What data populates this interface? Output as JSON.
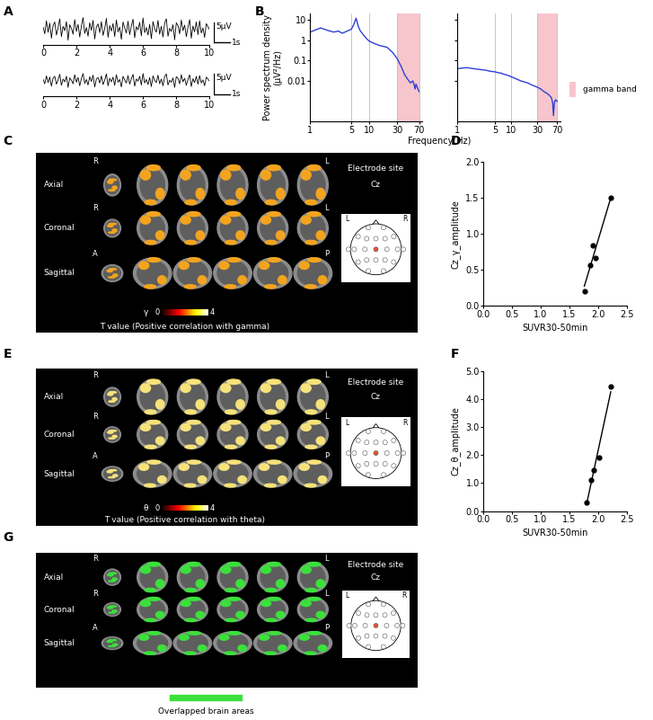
{
  "chart_data": [
    {
      "type": "line",
      "panel": "A",
      "x": [
        0,
        0.1,
        0.2,
        0.3,
        0.4,
        0.5,
        0.6,
        0.7,
        0.8,
        0.9,
        1,
        1.1,
        1.2,
        1.3,
        1.4,
        1.5,
        1.6,
        1.7,
        1.8,
        1.9,
        2,
        2.1,
        2.2,
        2.3,
        2.4,
        2.5,
        2.6,
        2.7,
        2.8,
        2.9,
        3,
        3.1,
        3.2,
        3.3,
        3.4,
        3.5,
        3.6,
        3.7,
        3.8,
        3.9,
        4,
        4.1,
        4.2,
        4.3,
        4.4,
        4.5,
        4.6,
        4.7,
        4.8,
        4.9,
        5,
        5.1,
        5.2,
        5.3,
        5.4,
        5.5,
        5.6,
        5.7,
        5.8,
        5.9,
        6,
        6.1,
        6.2,
        6.3,
        6.4,
        6.5,
        6.6,
        6.7,
        6.8,
        6.9,
        7,
        7.1,
        7.2,
        7.3,
        7.4,
        7.5,
        7.6,
        7.7,
        7.8,
        7.9,
        8,
        8.1,
        8.2,
        8.3,
        8.4,
        8.5,
        8.6,
        8.7,
        8.8,
        8.9,
        9,
        9.1,
        9.2,
        9.3,
        9.4,
        9.5,
        9.6,
        9.7,
        9.8,
        9.9,
        10
      ],
      "values": [
        0.5,
        -1.2,
        2.1,
        -0.8,
        1.5,
        -2.3,
        0.9,
        1.8,
        -1.5,
        0.3,
        2.6,
        -1.9,
        0.7,
        -0.4,
        1.9,
        -2.8,
        1.1,
        0.2,
        -1.3,
        2.4,
        -0.6,
        1.2,
        -2.0,
        0.8,
        2.9,
        -1.1,
        0.4,
        -1.8,
        1.6,
        -0.3,
        2.2,
        -2.5,
        0.6,
        1.3,
        -0.9,
        1.9,
        -1.6,
        0.1,
        2.7,
        -2.1,
        0.9,
        -0.5,
        1.4,
        -1.9,
        2.3,
        -0.7,
        0.5,
        -2.6,
        1.8,
        0.3,
        -1.0,
        2.0,
        -1.4,
        0.8,
        2.5,
        -2.2,
        0.6,
        -0.2,
        1.7,
        -1.7,
        2.8,
        -0.9,
        0.4,
        -1.5,
        1.2,
        -2.4,
        1.9,
        0.1,
        -0.8,
        2.2,
        -1.3,
        0.7,
        -2.0,
        1.5,
        2.6,
        -1.8,
        0.2,
        -0.6,
        1.1,
        -2.7,
        1.6,
        0.9,
        -1.2,
        2.3,
        -0.4,
        1.0,
        -1.9,
        0.5,
        2.4,
        -2.3,
        0.8,
        -0.7,
        1.8,
        -1.4,
        2.1,
        -1.0,
        0.3,
        -2.1,
        1.4,
        0.6,
        -0.2
      ],
      "xlim": [
        0,
        10
      ],
      "xticks": [
        0,
        2,
        4,
        6,
        8,
        10
      ],
      "ylim": [
        -4,
        4
      ],
      "tick_labels": "x",
      "color": "#000000",
      "scale_bar": {
        "x": 1,
        "y": 5,
        "x_label": "1s",
        "y_label": "5µV"
      }
    },
    {
      "type": "line",
      "x": [
        0,
        0.1,
        0.2,
        0.3,
        0.4,
        0.5,
        0.6,
        0.7,
        0.8,
        0.9,
        1,
        1.1,
        1.2,
        1.3,
        1.4,
        1.5,
        1.6,
        1.7,
        1.8,
        1.9,
        2,
        2.1,
        2.2,
        2.3,
        2.4,
        2.5,
        2.6,
        2.7,
        2.8,
        2.9,
        3,
        3.1,
        3.2,
        3.3,
        3.4,
        3.5,
        3.6,
        3.7,
        3.8,
        3.9,
        4,
        4.1,
        4.2,
        4.3,
        4.4,
        4.5,
        4.6,
        4.7,
        4.8,
        4.9,
        5,
        5.1,
        5.2,
        5.3,
        5.4,
        5.5,
        5.6,
        5.7,
        5.8,
        5.9,
        6,
        6.1,
        6.2,
        6.3,
        6.4,
        6.5,
        6.6,
        6.7,
        6.8,
        6.9,
        7,
        7.1,
        7.2,
        7.3,
        7.4,
        7.5,
        7.6,
        7.7,
        7.8,
        7.9,
        8,
        8.1,
        8.2,
        8.3,
        8.4,
        8.5,
        8.6,
        8.7,
        8.8,
        8.9,
        9,
        9.1,
        9.2,
        9.3,
        9.4,
        9.5,
        9.6,
        9.7,
        9.8,
        9.9,
        10
      ],
      "values": [
        0.3,
        -0.8,
        1.2,
        -0.5,
        0.9,
        -1.4,
        0.6,
        1.1,
        -0.9,
        0.2,
        1.6,
        -1.2,
        0.4,
        -0.3,
        1.1,
        -1.7,
        0.7,
        0.1,
        -0.8,
        1.5,
        -0.4,
        0.8,
        -1.3,
        0.5,
        1.8,
        -0.7,
        0.3,
        -1.1,
        1.0,
        -0.2,
        1.4,
        -1.6,
        0.4,
        0.8,
        -0.6,
        1.2,
        -1.0,
        0.1,
        1.7,
        -1.3,
        0.6,
        -0.3,
        0.9,
        -1.2,
        1.5,
        -0.4,
        0.3,
        -1.6,
        1.1,
        0.2,
        -0.6,
        1.3,
        -0.9,
        0.5,
        1.6,
        -1.4,
        0.4,
        -0.1,
        1.1,
        -1.1,
        1.8,
        -0.6,
        0.3,
        -1.0,
        0.8,
        -1.5,
        1.2,
        0.1,
        -0.5,
        1.4,
        -0.8,
        0.4,
        -1.3,
        1.0,
        1.7,
        -1.1,
        0.1,
        -0.4,
        0.7,
        -1.7,
        1.0,
        0.6,
        -0.8,
        1.5,
        -0.3,
        0.6,
        -1.2,
        0.3,
        1.5,
        -1.5,
        0.5,
        -0.5,
        1.1,
        -0.9,
        1.3,
        -0.6,
        0.2,
        -1.3,
        0.9,
        0.4,
        -0.2
      ],
      "xlim": [
        0,
        10
      ],
      "xticks": [
        0,
        2,
        4,
        6,
        8,
        10
      ],
      "ylim": [
        -4,
        4
      ],
      "tick_labels": "x",
      "color": "#000000",
      "scale_bar": {
        "x": 1,
        "y": 5,
        "x_label": "1s",
        "y_label": "5µV"
      }
    },
    {
      "type": "line",
      "panel": "B",
      "x": [
        1,
        1.5,
        2,
        2.5,
        3,
        3.5,
        4,
        5,
        5.5,
        6,
        6.5,
        7,
        8,
        9,
        10,
        12,
        15,
        20,
        25,
        30,
        35,
        40,
        45,
        50,
        55,
        58,
        60,
        62,
        65,
        70
      ],
      "values": [
        2.5,
        4,
        3,
        2.5,
        2.8,
        2.2,
        2.6,
        3.5,
        6,
        12,
        5,
        3,
        1.8,
        1.2,
        0.9,
        0.7,
        0.55,
        0.45,
        0.25,
        0.12,
        0.05,
        0.02,
        0.012,
        0.008,
        0.01,
        0.006,
        0.004,
        0.007,
        0.005,
        0.003
      ],
      "log": true,
      "xlim": [
        1,
        80
      ],
      "xticks": [
        1,
        5,
        10,
        30,
        70
      ],
      "ylim": [
        0.0001,
        20
      ],
      "yticks": [
        0.01,
        0.1,
        1,
        10
      ],
      "grid": true,
      "color": "#2f3fd6",
      "ylabel": "Power spectrum density\n(µV²/Hz)",
      "xlabel": "Frequency(Hz)",
      "band": {
        "range": [
          30,
          70
        ],
        "color": "#f7c6cc"
      }
    },
    {
      "type": "line",
      "x": [
        1,
        1.5,
        2,
        2.5,
        3,
        3.5,
        4,
        5,
        5.5,
        6,
        6.5,
        7,
        8,
        9,
        10,
        12,
        15,
        20,
        25,
        30,
        35,
        40,
        45,
        50,
        55,
        58,
        60,
        62,
        65,
        70
      ],
      "values": [
        0.04,
        0.045,
        0.04,
        0.037,
        0.035,
        0.033,
        0.03,
        0.028,
        0.026,
        0.025,
        0.024,
        0.022,
        0.02,
        0.018,
        0.016,
        0.013,
        0.01,
        0.008,
        0.006,
        0.005,
        0.004,
        0.003,
        0.0025,
        0.002,
        0.0015,
        0.0008,
        0.0002,
        0.0008,
        0.0012,
        0.001
      ],
      "log": true,
      "xlim": [
        1,
        80
      ],
      "xticks": [
        1,
        5,
        10,
        30,
        70
      ],
      "ylim": [
        0.0001,
        20
      ],
      "yticks": [
        0.01,
        0.1,
        1,
        10
      ],
      "grid": true,
      "tick_labels": "x",
      "color": "#2f3fd6",
      "band": {
        "range": [
          30,
          70
        ],
        "color": "#f7c6cc",
        "label": "gamma band"
      }
    },
    {
      "type": "image",
      "panel": "C",
      "views": [
        {
          "name": "Axial",
          "labels": [
            "R",
            "L"
          ]
        },
        {
          "name": "Coronal",
          "labels": [
            "R",
            "L"
          ]
        },
        {
          "name": "Sagittal",
          "labels": [
            "A",
            "P"
          ]
        }
      ],
      "electrode_title": "Electrode site",
      "electrode": "Cz",
      "head_labels": [
        "L",
        "R"
      ],
      "color": "#f3a41e",
      "colorbar": {
        "symbol": "γ",
        "range": [
          0,
          4
        ],
        "ticks": [
          0,
          4
        ],
        "label": "T value (Positive correlation with gamma)"
      }
    },
    {
      "type": "scatter",
      "panel": "D",
      "x": [
        1.76,
        1.86,
        1.9,
        1.96,
        2.22
      ],
      "values": [
        0.2,
        0.57,
        0.84,
        0.67,
        1.5
      ],
      "xlim": [
        0,
        2.5
      ],
      "xticks": [
        {
          "value": 0,
          "label": "0.0"
        },
        0.5,
        {
          "value": 1,
          "label": "1.0"
        },
        1.5,
        {
          "value": 2,
          "label": "2.0"
        },
        2.5
      ],
      "ylim": [
        0,
        2
      ],
      "yticks": [
        {
          "value": 0,
          "label": "0.0"
        },
        0.5,
        {
          "value": 1,
          "label": "1.0"
        },
        1.5,
        {
          "value": 2,
          "label": "2.0"
        }
      ],
      "xlabel": "SUVR30-50min",
      "ylabel": "Cz_γ_amplitude",
      "color": "#000000",
      "marker": "o",
      "line_style": "solid"
    },
    {
      "type": "image",
      "panel": "E",
      "views": [
        {
          "name": "Axial",
          "labels": [
            "R",
            "L"
          ]
        },
        {
          "name": "Coronal",
          "labels": [
            "R",
            "L"
          ]
        },
        {
          "name": "Sagittal",
          "labels": [
            "A",
            "P"
          ]
        }
      ],
      "electrode_title": "Electrode site",
      "electrode": "Cz",
      "head_labels": [
        "L",
        "R"
      ],
      "color": "#f6e27a",
      "colorbar": {
        "symbol": "θ",
        "range": [
          0,
          4
        ],
        "ticks": [
          0,
          4
        ],
        "label": "T value (Positive correlation with theta)"
      }
    },
    {
      "type": "scatter",
      "panel": "F",
      "x": [
        1.8,
        1.87,
        1.92,
        2.02,
        2.22
      ],
      "values": [
        0.3,
        1.1,
        1.45,
        1.9,
        4.45
      ],
      "xlim": [
        0,
        2.5
      ],
      "xticks": [
        {
          "value": 0,
          "label": "0.0"
        },
        0.5,
        {
          "value": 1,
          "label": "1.0"
        },
        1.5,
        {
          "value": 2,
          "label": "2.0"
        },
        2.5
      ],
      "ylim": [
        0,
        5
      ],
      "yticks": [
        {
          "value": 0,
          "label": "0.0"
        },
        {
          "value": 1,
          "label": "1.0"
        },
        {
          "value": 2,
          "label": "2.0"
        },
        {
          "value": 3,
          "label": "3.0"
        },
        {
          "value": 4,
          "label": "4.0"
        },
        {
          "value": 5,
          "label": "5.0"
        }
      ],
      "xlabel": "SUVR30-50min",
      "ylabel": "Cz_θ_amplitude",
      "color": "#000000",
      "marker": "o",
      "line_style": "solid"
    },
    {
      "type": "image",
      "panel": "G",
      "views": [
        {
          "name": "Axial",
          "labels": [
            "R",
            "L"
          ]
        },
        {
          "name": "Coronal",
          "labels": [
            "R",
            "L"
          ]
        },
        {
          "name": "Sagittal",
          "labels": [
            "A",
            "P"
          ]
        }
      ],
      "electrode_title": "Electrode site",
      "electrode": "Cz",
      "head_labels": [
        "L",
        "R"
      ],
      "color": "#3be03b",
      "legend_label": "Overlapped brain areas"
    }
  ]
}
